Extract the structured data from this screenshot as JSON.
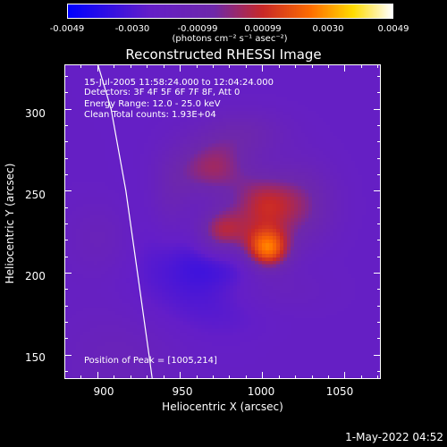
{
  "colorbar": {
    "ticks": [
      "-0.0049",
      "-0.0030",
      "-0.00099",
      "0.00099",
      "0.0030",
      "0.0049"
    ],
    "units_line": "(photons cm⁻² s⁻¹ asec⁻²)"
  },
  "info": {
    "time_range": "15-Jul-2005 11:58:24.000 to 12:04:24.000",
    "detectors": "Detectors: 3F 4F 5F 6F 7F 8F, Att 0",
    "energy": "Energy Range: 12.0 - 25.0 keV",
    "method": "Clean     Total counts: 1.93E+04",
    "peak": "Position of Peak = [1005,214]"
  },
  "timestamp": "1-May-2022 04:52",
  "chart_data": {
    "type": "heatmap",
    "title": "Reconstructed RHESSI Image",
    "xlabel": "Heliocentric X (arcsec)",
    "ylabel": "Heliocentric Y (arcsec)",
    "xlim": [
      880,
      1072
    ],
    "ylim": [
      135,
      327
    ],
    "xticks": [
      900,
      950,
      1000,
      1050
    ],
    "yticks": [
      150,
      200,
      250,
      300
    ],
    "clim": [
      -0.0049,
      0.0049
    ],
    "colormap": "blue-purple-red-yellow-white",
    "peak": [
      1005,
      214
    ],
    "source_blobs": [
      {
        "x": 970,
        "y": 262,
        "amp": 0.003,
        "sx": 16,
        "sy": 14
      },
      {
        "x": 1003,
        "y": 214,
        "amp": 0.0049,
        "sx": 10,
        "sy": 9
      },
      {
        "x": 975,
        "y": 225,
        "amp": 0.0041,
        "sx": 12,
        "sy": 11
      },
      {
        "x": 1000,
        "y": 240,
        "amp": 0.0033,
        "sx": 14,
        "sy": 14
      },
      {
        "x": 1025,
        "y": 240,
        "amp": 0.0018,
        "sx": 14,
        "sy": 18
      },
      {
        "x": 945,
        "y": 240,
        "amp": 0.0013,
        "sx": 10,
        "sy": 22
      },
      {
        "x": 990,
        "y": 285,
        "amp": 0.0012,
        "sx": 18,
        "sy": 10
      },
      {
        "x": 1000,
        "y": 190,
        "amp": 0.001,
        "sx": 24,
        "sy": 10
      }
    ],
    "limb_x_at_y": [
      [
        900,
        327
      ],
      [
        908,
        300
      ],
      [
        917,
        250
      ],
      [
        924,
        200
      ],
      [
        931,
        150
      ],
      [
        933,
        135
      ]
    ]
  }
}
